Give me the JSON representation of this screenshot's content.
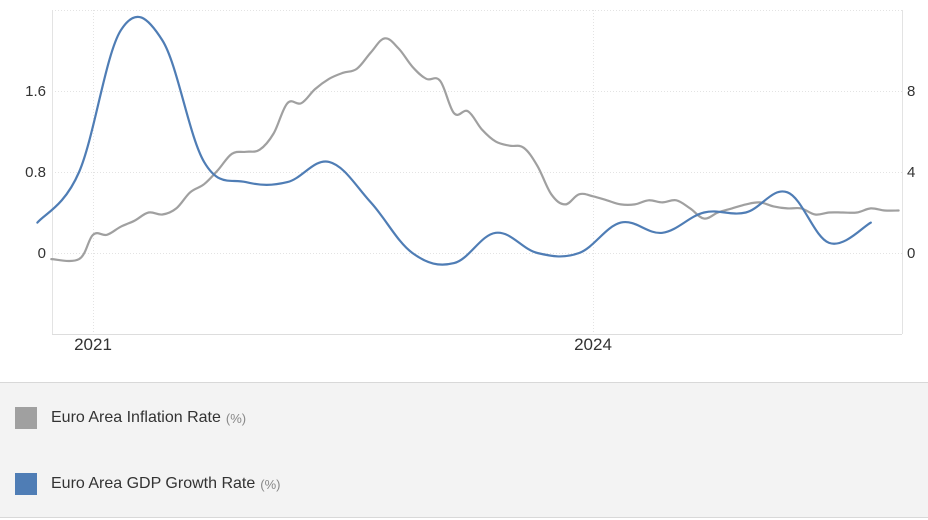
{
  "chart_data": {
    "type": "line",
    "x_ticks": [
      "2021",
      "2024"
    ],
    "y_left": {
      "ticks": [
        "0",
        "0.8",
        "1.6"
      ],
      "range": [
        -0.8,
        2.4
      ]
    },
    "y_right": {
      "ticks": [
        "0",
        "4",
        "8"
      ],
      "range": [
        -4,
        12
      ]
    },
    "grid": true,
    "legend_position": "bottom",
    "series": [
      {
        "name": "Euro Area Inflation Rate",
        "unit": "(%)",
        "color": "#a0a0a0",
        "axis": "right",
        "points": [
          [
            "2020-10",
            -0.3
          ],
          [
            "2020-12",
            -0.3
          ],
          [
            "2021-01",
            0.9
          ],
          [
            "2021-02",
            0.9
          ],
          [
            "2021-03",
            1.3
          ],
          [
            "2021-04",
            1.6
          ],
          [
            "2021-05",
            2.0
          ],
          [
            "2021-06",
            1.9
          ],
          [
            "2021-07",
            2.2
          ],
          [
            "2021-08",
            3.0
          ],
          [
            "2021-09",
            3.4
          ],
          [
            "2021-10",
            4.1
          ],
          [
            "2021-11",
            4.9
          ],
          [
            "2021-12",
            5.0
          ],
          [
            "2022-01",
            5.1
          ],
          [
            "2022-02",
            5.9
          ],
          [
            "2022-03",
            7.4
          ],
          [
            "2022-04",
            7.4
          ],
          [
            "2022-05",
            8.1
          ],
          [
            "2022-06",
            8.6
          ],
          [
            "2022-07",
            8.9
          ],
          [
            "2022-08",
            9.1
          ],
          [
            "2022-09",
            9.9
          ],
          [
            "2022-10",
            10.6
          ],
          [
            "2022-11",
            10.1
          ],
          [
            "2022-12",
            9.2
          ],
          [
            "2023-01",
            8.6
          ],
          [
            "2023-02",
            8.5
          ],
          [
            "2023-03",
            6.9
          ],
          [
            "2023-04",
            7.0
          ],
          [
            "2023-05",
            6.1
          ],
          [
            "2023-06",
            5.5
          ],
          [
            "2023-07",
            5.3
          ],
          [
            "2023-08",
            5.2
          ],
          [
            "2023-09",
            4.3
          ],
          [
            "2023-10",
            2.9
          ],
          [
            "2023-11",
            2.4
          ],
          [
            "2023-12",
            2.9
          ],
          [
            "2024-01",
            2.8
          ],
          [
            "2024-02",
            2.6
          ],
          [
            "2024-03",
            2.4
          ],
          [
            "2024-04",
            2.4
          ],
          [
            "2024-05",
            2.6
          ],
          [
            "2024-06",
            2.5
          ],
          [
            "2024-07",
            2.6
          ],
          [
            "2024-08",
            2.2
          ],
          [
            "2024-09",
            1.7
          ],
          [
            "2024-10",
            2.0
          ],
          [
            "2024-11",
            2.2
          ],
          [
            "2024-12",
            2.4
          ],
          [
            "2025-01",
            2.5
          ],
          [
            "2025-02",
            2.3
          ],
          [
            "2025-03",
            2.2
          ],
          [
            "2025-04",
            2.2
          ],
          [
            "2025-05",
            1.9
          ],
          [
            "2025-06",
            2.0
          ],
          [
            "2025-07",
            2.0
          ],
          [
            "2025-08",
            2.0
          ],
          [
            "2025-09",
            2.2
          ],
          [
            "2025-10",
            2.1
          ],
          [
            "2025-11",
            2.1
          ]
        ]
      },
      {
        "name": "Euro Area GDP Growth Rate",
        "unit": "(%)",
        "color": "#4f7db5",
        "axis": "left",
        "points": [
          [
            "2020-09",
            0.3
          ],
          [
            "2020-12",
            0.8
          ],
          [
            "2021-03",
            2.2
          ],
          [
            "2021-06",
            2.1
          ],
          [
            "2021-09",
            0.9
          ],
          [
            "2021-12",
            0.7
          ],
          [
            "2022-03",
            0.7
          ],
          [
            "2022-06",
            0.9
          ],
          [
            "2022-09",
            0.5
          ],
          [
            "2022-12",
            0.0
          ],
          [
            "2023-03",
            -0.1
          ],
          [
            "2023-06",
            0.2
          ],
          [
            "2023-09",
            0.0
          ],
          [
            "2023-12",
            0.0
          ],
          [
            "2024-03",
            0.3
          ],
          [
            "2024-06",
            0.2
          ],
          [
            "2024-09",
            0.4
          ],
          [
            "2024-12",
            0.4
          ],
          [
            "2025-03",
            0.6
          ],
          [
            "2025-06",
            0.1
          ],
          [
            "2025-09",
            0.3
          ]
        ]
      }
    ]
  }
}
